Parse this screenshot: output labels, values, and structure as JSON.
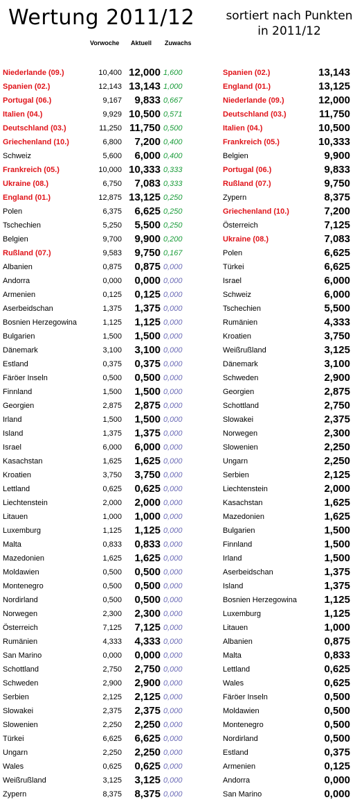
{
  "title": "Wertung 2011/12",
  "subtitle": "sortiert nach Punkten in 2011/12",
  "headers": {
    "previous": "Vorwoche",
    "current": "Aktuell",
    "gain": "Zuwachs"
  },
  "colors": {
    "highlight": "#e0141a",
    "gain_positive": "#1a9c3a",
    "gain_zero": "#6b6bb6"
  },
  "left_table": [
    {
      "name": "Niederlande (09.)",
      "prev": "10,400",
      "cur": "12,000",
      "gain": "1,600",
      "hl": true
    },
    {
      "name": "Spanien (02.)",
      "prev": "12,143",
      "cur": "13,143",
      "gain": "1,000",
      "hl": true
    },
    {
      "name": "Portugal (06.)",
      "prev": "9,167",
      "cur": "9,833",
      "gain": "0,667",
      "hl": true
    },
    {
      "name": "Italien (04.)",
      "prev": "9,929",
      "cur": "10,500",
      "gain": "0,571",
      "hl": true
    },
    {
      "name": "Deutschland (03.)",
      "prev": "11,250",
      "cur": "11,750",
      "gain": "0,500",
      "hl": true
    },
    {
      "name": "Griechenland (10.)",
      "prev": "6,800",
      "cur": "7,200",
      "gain": "0,400",
      "hl": true
    },
    {
      "name": "Schweiz",
      "prev": "5,600",
      "cur": "6,000",
      "gain": "0,400",
      "hl": false
    },
    {
      "name": "Frankreich (05.)",
      "prev": "10,000",
      "cur": "10,333",
      "gain": "0,333",
      "hl": true
    },
    {
      "name": "Ukraine (08.)",
      "prev": "6,750",
      "cur": "7,083",
      "gain": "0,333",
      "hl": true
    },
    {
      "name": "England (01.)",
      "prev": "12,875",
      "cur": "13,125",
      "gain": "0,250",
      "hl": true
    },
    {
      "name": "Polen",
      "prev": "6,375",
      "cur": "6,625",
      "gain": "0,250",
      "hl": false
    },
    {
      "name": "Tschechien",
      "prev": "5,250",
      "cur": "5,500",
      "gain": "0,250",
      "hl": false
    },
    {
      "name": "Belgien",
      "prev": "9,700",
      "cur": "9,900",
      "gain": "0,200",
      "hl": false
    },
    {
      "name": "Rußland (07.)",
      "prev": "9,583",
      "cur": "9,750",
      "gain": "0,167",
      "hl": true
    },
    {
      "name": "Albanien",
      "prev": "0,875",
      "cur": "0,875",
      "gain": "0,000",
      "hl": false
    },
    {
      "name": "Andorra",
      "prev": "0,000",
      "cur": "0,000",
      "gain": "0,000",
      "hl": false
    },
    {
      "name": "Armenien",
      "prev": "0,125",
      "cur": "0,125",
      "gain": "0,000",
      "hl": false
    },
    {
      "name": "Aserbeidschan",
      "prev": "1,375",
      "cur": "1,375",
      "gain": "0,000",
      "hl": false
    },
    {
      "name": "Bosnien Herzegowina",
      "prev": "1,125",
      "cur": "1,125",
      "gain": "0,000",
      "hl": false
    },
    {
      "name": "Bulgarien",
      "prev": "1,500",
      "cur": "1,500",
      "gain": "0,000",
      "hl": false
    },
    {
      "name": "Dänemark",
      "prev": "3,100",
      "cur": "3,100",
      "gain": "0,000",
      "hl": false
    },
    {
      "name": "Estland",
      "prev": "0,375",
      "cur": "0,375",
      "gain": "0,000",
      "hl": false
    },
    {
      "name": "Färöer Inseln",
      "prev": "0,500",
      "cur": "0,500",
      "gain": "0,000",
      "hl": false
    },
    {
      "name": "Finnland",
      "prev": "1,500",
      "cur": "1,500",
      "gain": "0,000",
      "hl": false
    },
    {
      "name": "Georgien",
      "prev": "2,875",
      "cur": "2,875",
      "gain": "0,000",
      "hl": false
    },
    {
      "name": "Irland",
      "prev": "1,500",
      "cur": "1,500",
      "gain": "0,000",
      "hl": false
    },
    {
      "name": "Island",
      "prev": "1,375",
      "cur": "1,375",
      "gain": "0,000",
      "hl": false
    },
    {
      "name": "Israel",
      "prev": "6,000",
      "cur": "6,000",
      "gain": "0,000",
      "hl": false
    },
    {
      "name": "Kasachstan",
      "prev": "1,625",
      "cur": "1,625",
      "gain": "0,000",
      "hl": false
    },
    {
      "name": "Kroatien",
      "prev": "3,750",
      "cur": "3,750",
      "gain": "0,000",
      "hl": false
    },
    {
      "name": "Lettland",
      "prev": "0,625",
      "cur": "0,625",
      "gain": "0,000",
      "hl": false
    },
    {
      "name": "Liechtenstein",
      "prev": "2,000",
      "cur": "2,000",
      "gain": "0,000",
      "hl": false
    },
    {
      "name": "Litauen",
      "prev": "1,000",
      "cur": "1,000",
      "gain": "0,000",
      "hl": false
    },
    {
      "name": "Luxemburg",
      "prev": "1,125",
      "cur": "1,125",
      "gain": "0,000",
      "hl": false
    },
    {
      "name": "Malta",
      "prev": "0,833",
      "cur": "0,833",
      "gain": "0,000",
      "hl": false
    },
    {
      "name": "Mazedonien",
      "prev": "1,625",
      "cur": "1,625",
      "gain": "0,000",
      "hl": false
    },
    {
      "name": "Moldawien",
      "prev": "0,500",
      "cur": "0,500",
      "gain": "0,000",
      "hl": false
    },
    {
      "name": "Montenegro",
      "prev": "0,500",
      "cur": "0,500",
      "gain": "0,000",
      "hl": false
    },
    {
      "name": "Nordirland",
      "prev": "0,500",
      "cur": "0,500",
      "gain": "0,000",
      "hl": false
    },
    {
      "name": "Norwegen",
      "prev": "2,300",
      "cur": "2,300",
      "gain": "0,000",
      "hl": false
    },
    {
      "name": "Österreich",
      "prev": "7,125",
      "cur": "7,125",
      "gain": "0,000",
      "hl": false
    },
    {
      "name": "Rumänien",
      "prev": "4,333",
      "cur": "4,333",
      "gain": "0,000",
      "hl": false
    },
    {
      "name": "San Marino",
      "prev": "0,000",
      "cur": "0,000",
      "gain": "0,000",
      "hl": false
    },
    {
      "name": "Schottland",
      "prev": "2,750",
      "cur": "2,750",
      "gain": "0,000",
      "hl": false
    },
    {
      "name": "Schweden",
      "prev": "2,900",
      "cur": "2,900",
      "gain": "0,000",
      "hl": false
    },
    {
      "name": "Serbien",
      "prev": "2,125",
      "cur": "2,125",
      "gain": "0,000",
      "hl": false
    },
    {
      "name": "Slowakei",
      "prev": "2,375",
      "cur": "2,375",
      "gain": "0,000",
      "hl": false
    },
    {
      "name": "Slowenien",
      "prev": "2,250",
      "cur": "2,250",
      "gain": "0,000",
      "hl": false
    },
    {
      "name": "Türkei",
      "prev": "6,625",
      "cur": "6,625",
      "gain": "0,000",
      "hl": false
    },
    {
      "name": "Ungarn",
      "prev": "2,250",
      "cur": "2,250",
      "gain": "0,000",
      "hl": false
    },
    {
      "name": "Wales",
      "prev": "0,625",
      "cur": "0,625",
      "gain": "0,000",
      "hl": false
    },
    {
      "name": "Weißrußland",
      "prev": "3,125",
      "cur": "3,125",
      "gain": "0,000",
      "hl": false
    },
    {
      "name": "Zypern",
      "prev": "8,375",
      "cur": "8,375",
      "gain": "0,000",
      "hl": false
    }
  ],
  "right_table": [
    {
      "name": "Spanien (02.)",
      "cur": "13,143",
      "hl": true
    },
    {
      "name": "England (01.)",
      "cur": "13,125",
      "hl": true
    },
    {
      "name": "Niederlande (09.)",
      "cur": "12,000",
      "hl": true
    },
    {
      "name": "Deutschland (03.)",
      "cur": "11,750",
      "hl": true
    },
    {
      "name": "Italien (04.)",
      "cur": "10,500",
      "hl": true
    },
    {
      "name": "Frankreich (05.)",
      "cur": "10,333",
      "hl": true
    },
    {
      "name": "Belgien",
      "cur": "9,900",
      "hl": false
    },
    {
      "name": "Portugal (06.)",
      "cur": "9,833",
      "hl": true
    },
    {
      "name": "Rußland (07.)",
      "cur": "9,750",
      "hl": true
    },
    {
      "name": "Zypern",
      "cur": "8,375",
      "hl": false
    },
    {
      "name": "Griechenland (10.)",
      "cur": "7,200",
      "hl": true
    },
    {
      "name": "Österreich",
      "cur": "7,125",
      "hl": false
    },
    {
      "name": "Ukraine (08.)",
      "cur": "7,083",
      "hl": true
    },
    {
      "name": "Polen",
      "cur": "6,625",
      "hl": false
    },
    {
      "name": "Türkei",
      "cur": "6,625",
      "hl": false
    },
    {
      "name": "Israel",
      "cur": "6,000",
      "hl": false
    },
    {
      "name": "Schweiz",
      "cur": "6,000",
      "hl": false
    },
    {
      "name": "Tschechien",
      "cur": "5,500",
      "hl": false
    },
    {
      "name": "Rumänien",
      "cur": "4,333",
      "hl": false
    },
    {
      "name": "Kroatien",
      "cur": "3,750",
      "hl": false
    },
    {
      "name": "Weißrußland",
      "cur": "3,125",
      "hl": false
    },
    {
      "name": "Dänemark",
      "cur": "3,100",
      "hl": false
    },
    {
      "name": "Schweden",
      "cur": "2,900",
      "hl": false
    },
    {
      "name": "Georgien",
      "cur": "2,875",
      "hl": false
    },
    {
      "name": "Schottland",
      "cur": "2,750",
      "hl": false
    },
    {
      "name": "Slowakei",
      "cur": "2,375",
      "hl": false
    },
    {
      "name": "Norwegen",
      "cur": "2,300",
      "hl": false
    },
    {
      "name": "Slowenien",
      "cur": "2,250",
      "hl": false
    },
    {
      "name": "Ungarn",
      "cur": "2,250",
      "hl": false
    },
    {
      "name": "Serbien",
      "cur": "2,125",
      "hl": false
    },
    {
      "name": "Liechtenstein",
      "cur": "2,000",
      "hl": false
    },
    {
      "name": "Kasachstan",
      "cur": "1,625",
      "hl": false
    },
    {
      "name": "Mazedonien",
      "cur": "1,625",
      "hl": false
    },
    {
      "name": "Bulgarien",
      "cur": "1,500",
      "hl": false
    },
    {
      "name": "Finnland",
      "cur": "1,500",
      "hl": false
    },
    {
      "name": "Irland",
      "cur": "1,500",
      "hl": false
    },
    {
      "name": "Aserbeidschan",
      "cur": "1,375",
      "hl": false
    },
    {
      "name": "Island",
      "cur": "1,375",
      "hl": false
    },
    {
      "name": "Bosnien Herzegowina",
      "cur": "1,125",
      "hl": false
    },
    {
      "name": "Luxemburg",
      "cur": "1,125",
      "hl": false
    },
    {
      "name": "Litauen",
      "cur": "1,000",
      "hl": false
    },
    {
      "name": "Albanien",
      "cur": "0,875",
      "hl": false
    },
    {
      "name": "Malta",
      "cur": "0,833",
      "hl": false
    },
    {
      "name": "Lettland",
      "cur": "0,625",
      "hl": false
    },
    {
      "name": "Wales",
      "cur": "0,625",
      "hl": false
    },
    {
      "name": "Färöer Inseln",
      "cur": "0,500",
      "hl": false
    },
    {
      "name": "Moldawien",
      "cur": "0,500",
      "hl": false
    },
    {
      "name": "Montenegro",
      "cur": "0,500",
      "hl": false
    },
    {
      "name": "Nordirland",
      "cur": "0,500",
      "hl": false
    },
    {
      "name": "Estland",
      "cur": "0,375",
      "hl": false
    },
    {
      "name": "Armenien",
      "cur": "0,125",
      "hl": false
    },
    {
      "name": "Andorra",
      "cur": "0,000",
      "hl": false
    },
    {
      "name": "San Marino",
      "cur": "0,000",
      "hl": false
    }
  ]
}
